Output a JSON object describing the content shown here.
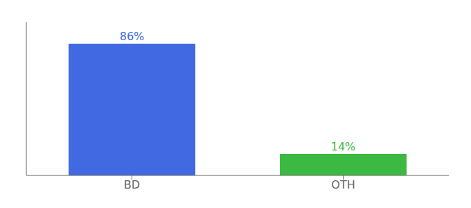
{
  "chart_data": {
    "type": "bar",
    "categories": [
      "BD",
      "OTH"
    ],
    "values": [
      86,
      14
    ],
    "value_labels": [
      "86%",
      "14%"
    ],
    "data_labels": true,
    "colors": [
      "#4169e1",
      "#3cb943"
    ],
    "ylim": [
      0,
      100
    ],
    "yticks": [],
    "tick_labels": "x",
    "grid": false
  }
}
